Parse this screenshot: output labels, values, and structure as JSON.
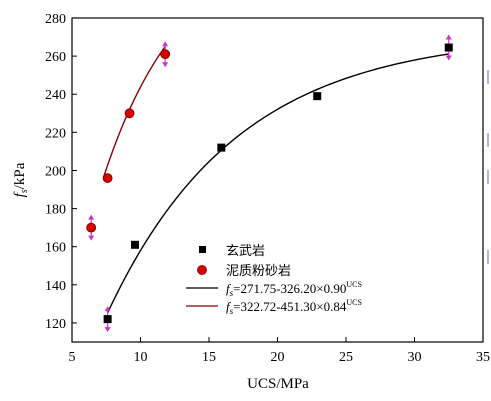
{
  "chart_data": {
    "type": "scatter",
    "xlabel": "UCS/MPa",
    "ylabel_main": "f",
    "ylabel_sub": "s",
    "ylabel_unit": "/kPa",
    "xlim": [
      5,
      35
    ],
    "ylim": [
      110,
      280
    ],
    "xticks": [
      5,
      10,
      15,
      20,
      25,
      30,
      35
    ],
    "yticks": [
      120,
      140,
      160,
      180,
      200,
      220,
      240,
      260,
      280
    ],
    "grid": false,
    "legend_position": "center",
    "series": [
      {
        "name": "玄武岩",
        "marker": "square",
        "color": "#000000",
        "points": [
          {
            "x": 7.6,
            "y": 122
          },
          {
            "x": 9.6,
            "y": 161
          },
          {
            "x": 15.9,
            "y": 212
          },
          {
            "x": 22.9,
            "y": 239
          },
          {
            "x": 32.5,
            "y": 264.5
          }
        ]
      },
      {
        "name": "泥质粉砂岩",
        "marker": "circle",
        "color": "#dd0000",
        "points": [
          {
            "x": 6.4,
            "y": 170
          },
          {
            "x": 7.6,
            "y": 196
          },
          {
            "x": 9.2,
            "y": 230
          },
          {
            "x": 11.8,
            "y": 261
          }
        ]
      }
    ],
    "fits": [
      {
        "f": "f",
        "sub": "s",
        "equation": "=271.75-326.20×0.90",
        "exponent": "UCS",
        "color": "#000000",
        "a": 271.75,
        "b": 326.2,
        "c": 0.9,
        "x_range": [
          7.6,
          32.5
        ]
      },
      {
        "f": "f",
        "sub": "s",
        "equation": "=322.72-451.30×0.84",
        "exponent": "UCS",
        "color": "#8b0000",
        "a": 322.72,
        "b": 451.3,
        "c": 0.84,
        "x_range": [
          7.3,
          11.8
        ]
      }
    ],
    "error_markers": {
      "color": "#cc33cc",
      "points": [
        {
          "x": 6.4,
          "y": 170
        },
        {
          "x": 7.6,
          "y": 122
        },
        {
          "x": 11.8,
          "y": 261
        },
        {
          "x": 32.5,
          "y": 264.5
        }
      ]
    }
  }
}
